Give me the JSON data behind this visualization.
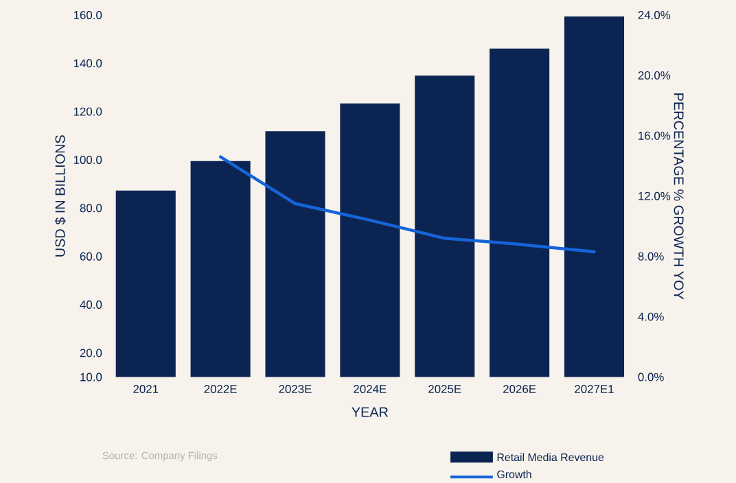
{
  "chart_data": {
    "type": "bar",
    "xlabel": "YEAR",
    "ylabel": "USD $ IN BILLIONS",
    "y2label": "PERCENTAGE % GROWTH YOY",
    "categories": [
      "2021",
      "2022E",
      "2023E",
      "2024E",
      "2025E",
      "2026E",
      "2027E1"
    ],
    "series": [
      {
        "name": "Retail Media Revenue",
        "color": "#0c2452",
        "values": [
          87.3,
          99.5,
          111.9,
          123.4,
          134.9,
          146.1,
          159.4
        ]
      },
      {
        "name": "Growth",
        "type": "line",
        "axis": "y2",
        "color": "#1565d8",
        "values": [
          null,
          14.6,
          11.5,
          10.4,
          9.2,
          8.8,
          8.3
        ]
      }
    ],
    "ylim": [
      10,
      160
    ],
    "yticks": [
      {
        "value": 10,
        "label": "10.0"
      },
      {
        "value": 20,
        "label": "20.0"
      },
      {
        "value": 40,
        "label": "40.0"
      },
      {
        "value": 60,
        "label": "60.0"
      },
      {
        "value": 80,
        "label": "80.0"
      },
      {
        "value": 100,
        "label": "100.0"
      },
      {
        "value": 120,
        "label": "120.0"
      },
      {
        "value": 140,
        "label": "140.0"
      },
      {
        "value": 160,
        "label": "160.0"
      }
    ],
    "y2lim": [
      0,
      24
    ],
    "y2ticks": [
      {
        "value": 0,
        "label": "0.0%"
      },
      {
        "value": 4,
        "label": "4.0%"
      },
      {
        "value": 8,
        "label": "8.0%"
      },
      {
        "value": 12,
        "label": "12.0%"
      },
      {
        "value": 16,
        "label": "16.0%"
      },
      {
        "value": 20,
        "label": "20.0%"
      },
      {
        "value": 24,
        "label": "24.0%"
      }
    ],
    "legend": "bottom right",
    "annotations": [
      "Source: Company Filings"
    ]
  }
}
